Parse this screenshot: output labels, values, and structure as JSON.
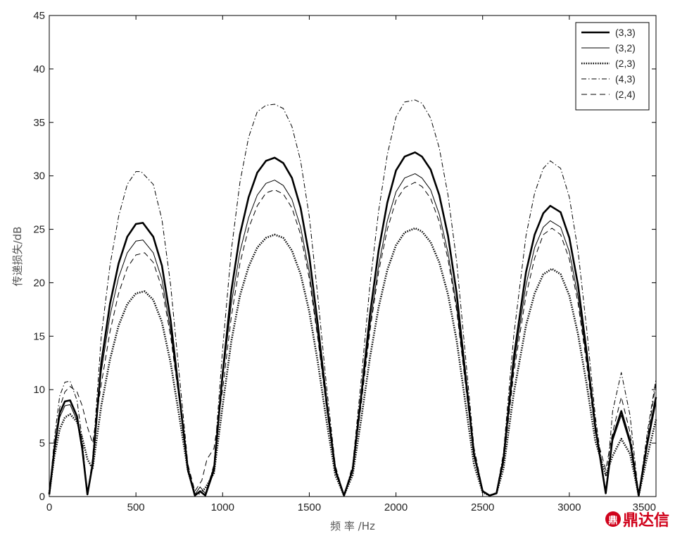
{
  "chart_data": {
    "type": "line",
    "title": "",
    "xlabel": "频 率 /Hz",
    "ylabel": "传递损失/dB",
    "xlim": [
      0,
      3500
    ],
    "ylim": [
      0,
      45
    ],
    "xticks": [
      0,
      500,
      1000,
      1500,
      2000,
      2500,
      3000,
      3500
    ],
    "yticks": [
      0,
      5,
      10,
      15,
      20,
      25,
      30,
      35,
      40,
      45
    ],
    "grid": false,
    "legend_position": "top-right",
    "series": [
      {
        "name": "(3,3)",
        "style": "thick-solid",
        "color": "#000000",
        "x": [
          0,
          30,
          60,
          90,
          120,
          160,
          190,
          220,
          250,
          300,
          350,
          400,
          450,
          500,
          540,
          600,
          650,
          700,
          750,
          800,
          840,
          870,
          900,
          950,
          1000,
          1050,
          1100,
          1150,
          1200,
          1250,
          1300,
          1350,
          1400,
          1450,
          1500,
          1550,
          1600,
          1650,
          1700,
          1750,
          1800,
          1850,
          1900,
          1950,
          2000,
          2050,
          2110,
          2150,
          2200,
          2250,
          2300,
          2350,
          2400,
          2450,
          2500,
          2540,
          2580,
          2620,
          2680,
          2750,
          2800,
          2850,
          2890,
          2950,
          3000,
          3050,
          3100,
          3150,
          3210,
          3250,
          3300,
          3350,
          3400,
          3450,
          3500
        ],
        "y": [
          0.2,
          4.5,
          7.8,
          8.9,
          9.0,
          7.5,
          4.5,
          0.2,
          3.0,
          12.5,
          18.0,
          21.8,
          24.3,
          25.5,
          25.6,
          24.3,
          21.6,
          16.5,
          9.5,
          2.5,
          0.1,
          0.5,
          0.1,
          2.5,
          11.5,
          19.2,
          24.5,
          28.0,
          30.3,
          31.4,
          31.7,
          31.2,
          29.8,
          27.0,
          22.5,
          16.0,
          8.8,
          2.5,
          0.1,
          2.5,
          9.5,
          17.0,
          23.0,
          27.5,
          30.5,
          31.8,
          32.2,
          31.8,
          30.6,
          28.2,
          24.4,
          19.0,
          11.5,
          4.0,
          0.5,
          0.1,
          0.3,
          3.5,
          13.0,
          21.0,
          24.5,
          26.5,
          27.2,
          26.6,
          24.2,
          19.8,
          13.5,
          6.5,
          0.3,
          5.5,
          8.0,
          5.2,
          0.1,
          5.0,
          9.3
        ]
      },
      {
        "name": "(3,2)",
        "style": "thin-solid",
        "color": "#000000",
        "x": [
          0,
          30,
          60,
          90,
          120,
          160,
          190,
          220,
          250,
          300,
          350,
          400,
          450,
          500,
          540,
          600,
          650,
          700,
          750,
          800,
          840,
          870,
          900,
          950,
          1000,
          1050,
          1100,
          1150,
          1200,
          1250,
          1300,
          1350,
          1400,
          1450,
          1500,
          1550,
          1600,
          1650,
          1700,
          1750,
          1800,
          1850,
          1900,
          1950,
          2000,
          2050,
          2110,
          2150,
          2200,
          2250,
          2300,
          2350,
          2400,
          2450,
          2500,
          2540,
          2580,
          2620,
          2680,
          2750,
          2800,
          2850,
          2890,
          2950,
          3000,
          3050,
          3100,
          3150,
          3210,
          3250,
          3300,
          3350,
          3400,
          3450,
          3500
        ],
        "y": [
          0.2,
          4.3,
          7.4,
          8.5,
          8.6,
          7.1,
          4.2,
          0.2,
          2.8,
          11.7,
          16.9,
          20.5,
          22.8,
          23.9,
          24.0,
          22.8,
          20.3,
          15.5,
          9.0,
          2.5,
          0.2,
          0.9,
          0.3,
          2.8,
          11.0,
          18.0,
          22.9,
          26.1,
          28.2,
          29.3,
          29.6,
          29.1,
          27.8,
          25.2,
          21.0,
          15.0,
          8.3,
          2.4,
          0.1,
          2.4,
          9.0,
          16.0,
          21.6,
          25.8,
          28.5,
          29.8,
          30.2,
          29.8,
          28.7,
          26.4,
          22.8,
          17.8,
          10.8,
          3.8,
          0.5,
          0.1,
          0.3,
          3.3,
          12.2,
          19.8,
          23.3,
          25.2,
          25.8,
          25.2,
          22.9,
          18.7,
          12.8,
          6.2,
          0.3,
          5.2,
          7.6,
          4.9,
          0.1,
          4.7,
          8.8
        ]
      },
      {
        "name": "(2,3)",
        "style": "dotted",
        "color": "#000000",
        "x": [
          0,
          30,
          60,
          90,
          120,
          160,
          190,
          220,
          250,
          300,
          350,
          400,
          450,
          500,
          550,
          600,
          650,
          700,
          750,
          800,
          840,
          870,
          900,
          950,
          1000,
          1050,
          1100,
          1150,
          1200,
          1250,
          1300,
          1350,
          1400,
          1450,
          1500,
          1550,
          1600,
          1650,
          1700,
          1750,
          1800,
          1850,
          1900,
          1950,
          2000,
          2050,
          2110,
          2150,
          2200,
          2250,
          2300,
          2350,
          2400,
          2450,
          2500,
          2540,
          2580,
          2620,
          2680,
          2750,
          2800,
          2850,
          2900,
          2950,
          3000,
          3050,
          3100,
          3150,
          3210,
          3250,
          3300,
          3350,
          3400,
          3450,
          3500
        ],
        "y": [
          0.3,
          3.8,
          6.3,
          7.4,
          7.7,
          7.0,
          5.5,
          3.5,
          2.6,
          8.5,
          12.8,
          16.0,
          18.0,
          19.0,
          19.2,
          18.4,
          16.3,
          12.5,
          7.5,
          2.4,
          0.2,
          0.3,
          0.8,
          2.2,
          8.5,
          14.5,
          18.8,
          21.5,
          23.3,
          24.2,
          24.5,
          24.2,
          23.0,
          20.8,
          17.3,
          12.5,
          7.0,
          2.0,
          0.1,
          2.0,
          7.3,
          13.0,
          17.7,
          21.2,
          23.5,
          24.7,
          25.1,
          24.8,
          23.8,
          21.9,
          18.9,
          14.6,
          8.8,
          3.0,
          0.4,
          0.1,
          0.3,
          2.6,
          9.7,
          16.0,
          19.0,
          20.8,
          21.3,
          20.8,
          18.8,
          15.2,
          10.5,
          5.2,
          2.0,
          3.8,
          5.4,
          4.0,
          0.1,
          3.8,
          7.2
        ]
      },
      {
        "name": "(4,3)",
        "style": "dash-dot",
        "color": "#000000",
        "x": [
          0,
          30,
          60,
          90,
          120,
          160,
          190,
          220,
          250,
          300,
          350,
          400,
          450,
          500,
          530,
          600,
          650,
          700,
          750,
          800,
          840,
          870,
          900,
          950,
          1000,
          1050,
          1100,
          1150,
          1200,
          1250,
          1300,
          1350,
          1400,
          1450,
          1500,
          1550,
          1600,
          1650,
          1700,
          1750,
          1800,
          1850,
          1900,
          1950,
          2000,
          2050,
          2110,
          2150,
          2200,
          2250,
          2300,
          2350,
          2400,
          2450,
          2500,
          2540,
          2580,
          2620,
          2680,
          2750,
          2800,
          2850,
          2890,
          2950,
          3000,
          3050,
          3100,
          3150,
          3210,
          3250,
          3300,
          3350,
          3400,
          3450,
          3500
        ],
        "y": [
          0.2,
          5.5,
          9.4,
          10.7,
          10.8,
          9.0,
          5.4,
          0.2,
          3.6,
          15.0,
          21.6,
          26.2,
          29.2,
          30.4,
          30.4,
          29.2,
          25.9,
          19.8,
          11.4,
          3.0,
          0.1,
          0.5,
          0.1,
          3.0,
          13.8,
          23.0,
          29.4,
          33.6,
          36.0,
          36.6,
          36.7,
          36.3,
          34.6,
          31.4,
          26.2,
          18.6,
          10.2,
          2.9,
          0.1,
          2.9,
          11.0,
          19.8,
          26.7,
          32.0,
          35.5,
          36.9,
          37.1,
          36.8,
          35.4,
          32.6,
          28.2,
          22.0,
          13.3,
          4.6,
          0.6,
          0.1,
          0.4,
          4.1,
          15.1,
          24.4,
          28.4,
          30.7,
          31.4,
          30.7,
          28.0,
          23.0,
          15.7,
          7.5,
          0.4,
          8.0,
          11.6,
          7.6,
          0.1,
          6.0,
          11.0
        ]
      },
      {
        "name": "(2,4)",
        "style": "dashed",
        "color": "#000000",
        "x": [
          0,
          30,
          60,
          90,
          120,
          160,
          190,
          220,
          250,
          300,
          350,
          400,
          450,
          500,
          550,
          600,
          650,
          700,
          750,
          800,
          840,
          880,
          910,
          950,
          1000,
          1050,
          1100,
          1150,
          1200,
          1250,
          1300,
          1350,
          1400,
          1450,
          1500,
          1550,
          1600,
          1650,
          1700,
          1750,
          1800,
          1850,
          1900,
          1950,
          2000,
          2050,
          2110,
          2150,
          2200,
          2250,
          2300,
          2350,
          2400,
          2450,
          2500,
          2540,
          2580,
          2620,
          2680,
          2750,
          2800,
          2850,
          2900,
          2950,
          3000,
          3050,
          3100,
          3150,
          3210,
          3250,
          3300,
          3350,
          3400,
          3450,
          3500
        ],
        "y": [
          0.3,
          5.0,
          8.3,
          9.8,
          10.3,
          9.8,
          8.5,
          6.5,
          5.0,
          10.5,
          15.4,
          19.0,
          21.4,
          22.6,
          22.8,
          21.9,
          19.5,
          15.0,
          9.0,
          3.0,
          0.5,
          1.5,
          3.5,
          4.5,
          10.0,
          16.8,
          21.8,
          25.1,
          27.2,
          28.4,
          28.7,
          28.3,
          27.0,
          24.5,
          20.4,
          14.7,
          8.2,
          2.3,
          0.1,
          2.3,
          8.7,
          15.5,
          21.0,
          25.0,
          27.7,
          28.9,
          29.4,
          29.0,
          27.9,
          25.7,
          22.2,
          17.4,
          10.6,
          3.7,
          0.5,
          0.1,
          0.3,
          3.1,
          11.6,
          18.8,
          22.3,
          24.5,
          25.1,
          24.5,
          22.2,
          18.1,
          12.4,
          6.0,
          2.5,
          6.0,
          9.3,
          6.0,
          0.3,
          5.5,
          10.6
        ]
      }
    ]
  },
  "watermark": {
    "text": "鼎达信"
  }
}
